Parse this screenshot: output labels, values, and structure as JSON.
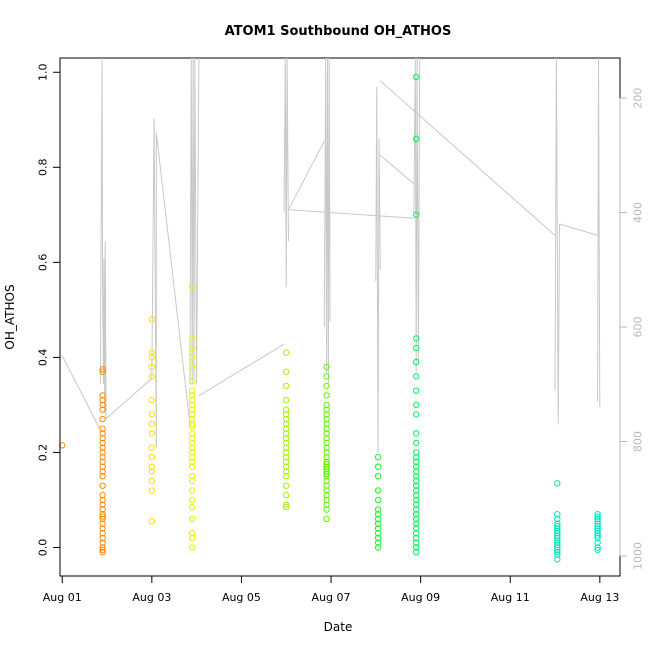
{
  "chart_data": {
    "type": "scatter",
    "title": "ATOM1 Southbound OH_ATHOS",
    "xlabel": "Date",
    "ylabel": "OH_ATHOS",
    "xlim": [
      -0.05,
      12.45
    ],
    "ylim": [
      -0.06,
      1.03
    ],
    "x_ticks": [
      {
        "value": 0,
        "label": "Aug 01"
      },
      {
        "value": 2,
        "label": "Aug 03"
      },
      {
        "value": 4,
        "label": "Aug 05"
      },
      {
        "value": 6,
        "label": "Aug 07"
      },
      {
        "value": 8,
        "label": "Aug 09"
      },
      {
        "value": 10,
        "label": "Aug 11"
      },
      {
        "value": 12,
        "label": "Aug 13"
      }
    ],
    "y_ticks": [
      0.0,
      0.2,
      0.4,
      0.6,
      0.8,
      1.0
    ],
    "y_tick_labels": [
      "0.0",
      "0.2",
      "0.4",
      "0.6",
      "0.8",
      "1.0"
    ],
    "secondary_axis": {
      "side": "right",
      "quantity": "depth",
      "reversed": true,
      "ylim": [
        1035,
        130
      ],
      "ticks": [
        200,
        400,
        600,
        800,
        1000
      ],
      "tick_labels": [
        "200",
        "400",
        "600",
        "800",
        "1000"
      ],
      "color": "#b8b8b8"
    },
    "grid": false,
    "legend": "none",
    "line_color": "#c8c8c8",
    "point_style": "open-circle",
    "clusters": [
      {
        "x": 0.0,
        "y": [
          0.215
        ],
        "color": "#ff8c00"
      },
      {
        "x": 0.9,
        "y": [
          -0.01,
          -0.005,
          0.0,
          0.01,
          0.02,
          0.03,
          0.04,
          0.05,
          0.06,
          0.065,
          0.07,
          0.08,
          0.09,
          0.1,
          0.11,
          0.13,
          0.15,
          0.16,
          0.17,
          0.18,
          0.19,
          0.2,
          0.21,
          0.22,
          0.23,
          0.24,
          0.25,
          0.27,
          0.29,
          0.3,
          0.31,
          0.32,
          0.37,
          0.375
        ],
        "color": "#ff8c00"
      },
      {
        "x": 2.0,
        "y": [
          0.055,
          0.12,
          0.14,
          0.16,
          0.17,
          0.19,
          0.21,
          0.24,
          0.26,
          0.28,
          0.31,
          0.36,
          0.38,
          0.4,
          0.41,
          0.48
        ],
        "color": "#ffde00"
      },
      {
        "x": 2.9,
        "y": [
          0.0,
          0.02,
          0.03,
          0.06,
          0.085,
          0.1,
          0.12,
          0.14,
          0.15,
          0.17,
          0.18,
          0.19,
          0.2,
          0.21,
          0.22,
          0.23,
          0.24,
          0.255,
          0.26,
          0.27,
          0.28,
          0.29,
          0.3,
          0.31,
          0.32,
          0.33,
          0.35,
          0.38,
          0.4,
          0.42,
          0.44,
          0.55
        ],
        "color": "#e6f200"
      },
      {
        "x": 5.0,
        "y": [
          0.085,
          0.09,
          0.11,
          0.13,
          0.15,
          0.16,
          0.17,
          0.18,
          0.19,
          0.2,
          0.21,
          0.22,
          0.23,
          0.24,
          0.25,
          0.26,
          0.27,
          0.28,
          0.29,
          0.31,
          0.34,
          0.37,
          0.41
        ],
        "color": "#a6f200"
      },
      {
        "x": 5.9,
        "y": [
          0.06,
          0.08,
          0.09,
          0.1,
          0.11,
          0.12,
          0.13,
          0.14,
          0.15,
          0.155,
          0.16,
          0.165,
          0.17,
          0.175,
          0.18,
          0.19,
          0.2,
          0.21,
          0.22,
          0.23,
          0.24,
          0.25,
          0.26,
          0.27,
          0.28,
          0.29,
          0.3,
          0.32,
          0.34,
          0.36,
          0.38
        ],
        "color": "#66f000"
      },
      {
        "x": 7.05,
        "y": [
          0.0,
          0.01,
          0.02,
          0.03,
          0.04,
          0.05,
          0.06,
          0.07,
          0.08,
          0.1,
          0.12,
          0.15,
          0.17,
          0.19
        ],
        "color": "#1ef02d"
      },
      {
        "x": 7.9,
        "y": [
          -0.01,
          0.0,
          0.01,
          0.02,
          0.03,
          0.04,
          0.05,
          0.06,
          0.07,
          0.08,
          0.09,
          0.1,
          0.11,
          0.12,
          0.13,
          0.14,
          0.15,
          0.16,
          0.17,
          0.18,
          0.19,
          0.2,
          0.22,
          0.24,
          0.28,
          0.3,
          0.33,
          0.36,
          0.39,
          0.42,
          0.44,
          0.7,
          0.86,
          0.99
        ],
        "color": "#00f05a"
      },
      {
        "x": 11.05,
        "y": [
          -0.025,
          -0.015,
          -0.01,
          -0.005,
          0.0,
          0.005,
          0.01,
          0.015,
          0.02,
          0.025,
          0.03,
          0.035,
          0.04,
          0.045,
          0.05,
          0.06,
          0.07,
          0.135
        ],
        "color": "#00e6b4"
      },
      {
        "x": 11.95,
        "y": [
          -0.005,
          0.0,
          0.01,
          0.02,
          0.025,
          0.03,
          0.035,
          0.04,
          0.045,
          0.05,
          0.055,
          0.06,
          0.065,
          0.07
        ],
        "color": "#00e6c0"
      }
    ],
    "depth_segments": [
      {
        "x": [
          0.0,
          0.85
        ],
        "depth": [
          650,
          780
        ]
      },
      {
        "x": [
          0.85,
          0.89,
          0.9,
          0.92,
          0.93,
          0.95,
          0.96,
          0.98
        ],
        "depth": [
          700,
          130,
          530,
          700,
          480,
          750,
          450,
          760
        ]
      },
      {
        "x": [
          0.98,
          2.0
        ],
        "depth": [
          760,
          690
        ]
      },
      {
        "x": [
          2.0,
          2.05,
          2.1
        ],
        "depth": [
          690,
          235,
          810
        ]
      },
      {
        "x": [
          2.1,
          2.1,
          2.85
        ],
        "depth": [
          810,
          260,
          770
        ]
      },
      {
        "x": [
          2.85,
          2.88,
          2.9,
          2.92,
          2.94,
          2.96,
          3.0,
          3.05
        ],
        "depth": [
          700,
          130,
          700,
          130,
          690,
          130,
          700,
          130
        ]
      },
      {
        "x": [
          3.05,
          4.95
        ],
        "depth": [
          720,
          630
        ]
      },
      {
        "x": [
          4.95,
          4.98,
          5.0,
          5.02,
          5.05
        ],
        "depth": [
          400,
          130,
          530,
          130,
          450
        ]
      },
      {
        "x": [
          5.05,
          5.85
        ],
        "depth": [
          395,
          275
        ]
      },
      {
        "x": [
          5.85,
          5.88,
          5.9,
          5.92,
          5.94,
          5.96,
          5.98
        ],
        "depth": [
          600,
          130,
          680,
          130,
          700,
          130,
          590
        ]
      },
      {
        "x": [
          5.05,
          7.85
        ],
        "depth": [
          395,
          410
        ]
      },
      {
        "x": [
          7.0,
          7.02,
          7.05,
          7.07,
          7.1
        ],
        "depth": [
          520,
          180,
          820,
          270,
          500
        ]
      },
      {
        "x": [
          7.1,
          7.85
        ],
        "depth": [
          300,
          350
        ]
      },
      {
        "x": [
          7.85,
          7.88,
          7.9,
          7.92,
          7.95,
          7.98
        ],
        "depth": [
          400,
          130,
          680,
          130,
          660,
          130
        ]
      },
      {
        "x": [
          7.1,
          11.0
        ],
        "depth": [
          170,
          440
        ]
      },
      {
        "x": [
          11.0,
          11.03,
          11.07,
          11.1
        ],
        "depth": [
          710,
          130,
          770,
          420
        ]
      },
      {
        "x": [
          11.1,
          11.95
        ],
        "depth": [
          420,
          440
        ]
      },
      {
        "x": [
          11.95,
          11.97,
          12.0
        ],
        "depth": [
          730,
          130,
          740
        ]
      }
    ]
  }
}
